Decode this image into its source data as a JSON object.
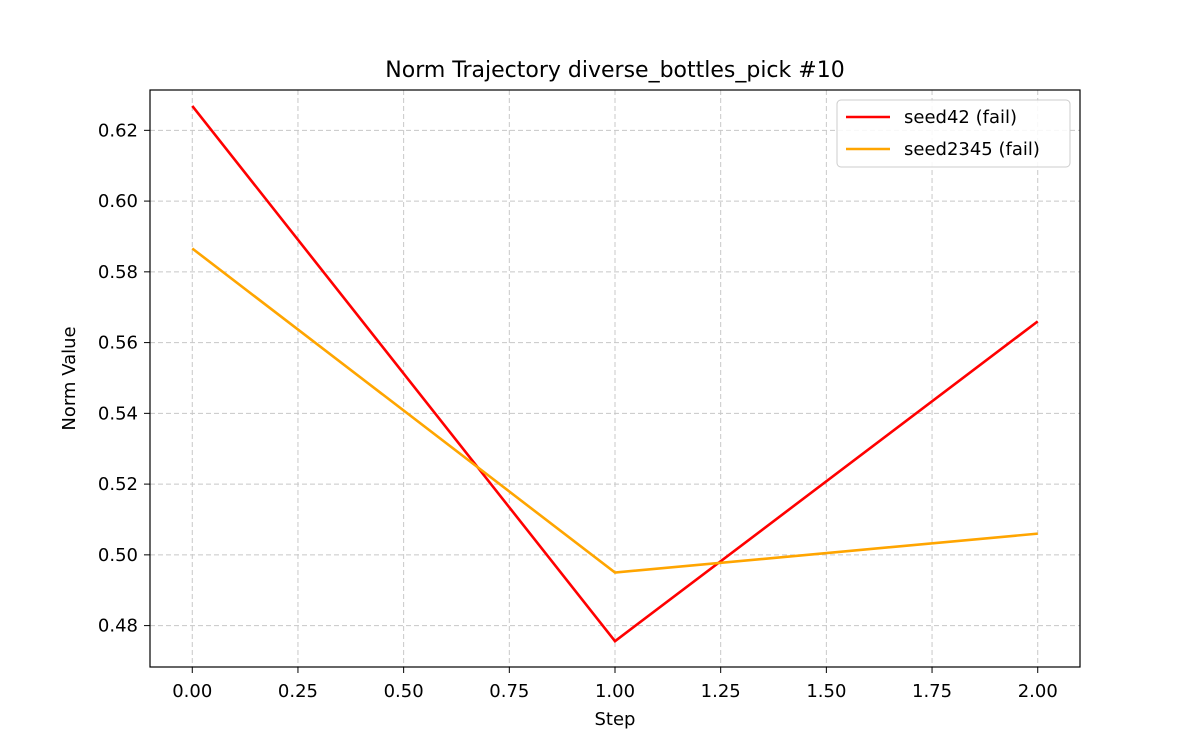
{
  "chart_data": {
    "type": "line",
    "title": "Norm Trajectory diverse_bottles_pick #10",
    "xlabel": "Step",
    "ylabel": "Norm Value",
    "xlim": [
      -0.1,
      2.1
    ],
    "ylim": [
      0.4683,
      0.6314
    ],
    "x_ticks": [
      0.0,
      0.25,
      0.5,
      0.75,
      1.0,
      1.25,
      1.5,
      1.75,
      2.0
    ],
    "x_tick_labels": [
      "0.00",
      "0.25",
      "0.50",
      "0.75",
      "1.00",
      "1.25",
      "1.50",
      "1.75",
      "2.00"
    ],
    "y_ticks": [
      0.48,
      0.5,
      0.52,
      0.54,
      0.56,
      0.58,
      0.6,
      0.62
    ],
    "y_tick_labels": [
      "0.48",
      "0.50",
      "0.52",
      "0.54",
      "0.56",
      "0.58",
      "0.60",
      "0.62"
    ],
    "grid": true,
    "grid_style": "dashed",
    "legend_position": "top-right",
    "x": [
      0,
      1,
      2
    ],
    "series": [
      {
        "name": "seed42 (fail)",
        "color": "#ff0000",
        "values": [
          0.6269,
          0.4756,
          0.566
        ]
      },
      {
        "name": "seed2345 (fail)",
        "color": "#ffa500",
        "values": [
          0.5866,
          0.495,
          0.506
        ]
      }
    ]
  }
}
